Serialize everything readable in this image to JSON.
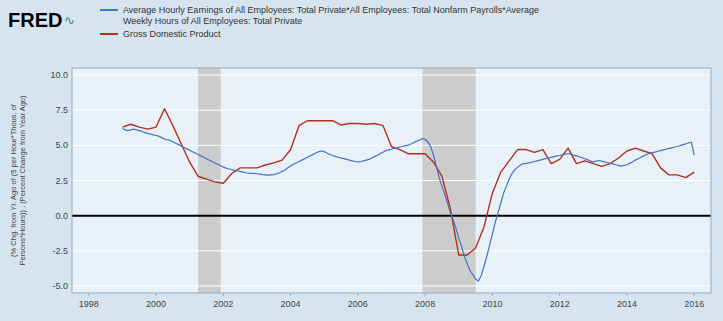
{
  "chart_data": {
    "type": "line",
    "annotations": [
      "FRED",
      "∿"
    ],
    "y_label": "(% Chg. from Yr. Ago of ($ per Hour*Thous. of\nPersons*Hours)) , (Percent Change from Year Ago)",
    "xlim": [
      1997.5,
      2016.5
    ],
    "xticks": [
      1998,
      2000,
      2002,
      2004,
      2006,
      2008,
      2010,
      2012,
      2014,
      2016
    ],
    "ylim": [
      -5.5,
      10.5
    ],
    "yticks": [
      {
        "value": -5.0,
        "label": "-5.0"
      },
      {
        "value": -2.5,
        "label": "-2.5"
      },
      {
        "value": 0.0,
        "label": "0.0"
      },
      {
        "value": 2.5,
        "label": "2.5"
      },
      {
        "value": 5.0,
        "label": "5.0"
      },
      {
        "value": 7.5,
        "label": "7.5"
      },
      {
        "value": 10.0,
        "label": "10.0"
      }
    ],
    "grid": true,
    "legend": "top-left",
    "recession_bands": [
      [
        2001.25,
        2001.92
      ],
      [
        2007.92,
        2009.5
      ]
    ],
    "reference_line": 0,
    "series": [
      {
        "name": "Average Hourly Earnings of All Employees: Total Private*All Employees: Total Nonfarm Payrolls*Average\nWeekly Hours of All Employees: Total Private",
        "color": "#4472c4",
        "x": [
          1999.0,
          1999.083,
          1999.167,
          1999.25,
          1999.333,
          1999.417,
          1999.5,
          1999.583,
          1999.667,
          1999.75,
          1999.833,
          1999.917,
          2000.0,
          2000.083,
          2000.167,
          2000.25,
          2000.333,
          2000.417,
          2000.5,
          2000.583,
          2000.667,
          2000.75,
          2000.833,
          2000.917,
          2001.0,
          2001.083,
          2001.167,
          2001.25,
          2001.333,
          2001.417,
          2001.5,
          2001.583,
          2001.667,
          2001.75,
          2001.833,
          2001.917,
          2002.0,
          2002.083,
          2002.167,
          2002.25,
          2002.333,
          2002.417,
          2002.5,
          2002.583,
          2002.667,
          2002.75,
          2002.833,
          2002.917,
          2003.0,
          2003.083,
          2003.167,
          2003.25,
          2003.333,
          2003.417,
          2003.5,
          2003.583,
          2003.667,
          2003.75,
          2003.833,
          2003.917,
          2004.0,
          2004.083,
          2004.167,
          2004.25,
          2004.333,
          2004.417,
          2004.5,
          2004.583,
          2004.667,
          2004.75,
          2004.833,
          2004.917,
          2005.0,
          2005.083,
          2005.167,
          2005.25,
          2005.333,
          2005.417,
          2005.5,
          2005.583,
          2005.667,
          2005.75,
          2005.833,
          2005.917,
          2006.0,
          2006.083,
          2006.167,
          2006.25,
          2006.333,
          2006.417,
          2006.5,
          2006.583,
          2006.667,
          2006.75,
          2006.833,
          2006.917,
          2007.0,
          2007.083,
          2007.167,
          2007.25,
          2007.333,
          2007.417,
          2007.5,
          2007.583,
          2007.667,
          2007.75,
          2007.833,
          2007.917,
          2008.0,
          2008.083,
          2008.167,
          2008.25,
          2008.333,
          2008.417,
          2008.5,
          2008.583,
          2008.667,
          2008.75,
          2008.833,
          2008.917,
          2009.0,
          2009.083,
          2009.167,
          2009.25,
          2009.333,
          2009.417,
          2009.5,
          2009.583,
          2009.667,
          2009.75,
          2009.833,
          2009.917,
          2010.0,
          2010.083,
          2010.167,
          2010.25,
          2010.333,
          2010.417,
          2010.5,
          2010.583,
          2010.667,
          2010.75,
          2010.833,
          2010.917,
          2011.0,
          2011.083,
          2011.167,
          2011.25,
          2011.333,
          2011.417,
          2011.5,
          2011.583,
          2011.667,
          2011.75,
          2011.833,
          2011.917,
          2012.0,
          2012.083,
          2012.167,
          2012.25,
          2012.333,
          2012.417,
          2012.5,
          2012.583,
          2012.667,
          2012.75,
          2012.833,
          2012.917,
          2013.0,
          2013.083,
          2013.167,
          2013.25,
          2013.333,
          2013.417,
          2013.5,
          2013.583,
          2013.667,
          2013.75,
          2013.833,
          2013.917,
          2014.0,
          2014.083,
          2014.167,
          2014.25,
          2014.333,
          2014.417,
          2014.5,
          2014.583,
          2014.667,
          2014.75,
          2014.833,
          2014.917,
          2015.0,
          2015.083,
          2015.167,
          2015.25,
          2015.333,
          2015.417,
          2015.5,
          2015.583,
          2015.667,
          2015.75,
          2015.833,
          2015.917,
          2016.0
        ],
        "values": [
          6.2,
          6.1,
          6.05,
          6.1,
          6.15,
          6.1,
          6.05,
          6.0,
          5.9,
          5.85,
          5.8,
          5.75,
          5.7,
          5.65,
          5.55,
          5.45,
          5.4,
          5.35,
          5.25,
          5.15,
          5.05,
          4.95,
          4.85,
          4.75,
          4.65,
          4.55,
          4.45,
          4.35,
          4.25,
          4.15,
          4.05,
          3.95,
          3.85,
          3.75,
          3.65,
          3.55,
          3.45,
          3.38,
          3.32,
          3.28,
          3.22,
          3.18,
          3.15,
          3.1,
          3.05,
          3.02,
          3.0,
          3.0,
          2.98,
          2.95,
          2.92,
          2.9,
          2.88,
          2.9,
          2.92,
          2.98,
          3.05,
          3.15,
          3.25,
          3.4,
          3.55,
          3.65,
          3.75,
          3.85,
          3.95,
          4.05,
          4.15,
          4.25,
          4.35,
          4.45,
          4.55,
          4.6,
          4.55,
          4.45,
          4.35,
          4.28,
          4.22,
          4.15,
          4.1,
          4.05,
          4.0,
          3.95,
          3.9,
          3.85,
          3.82,
          3.85,
          3.9,
          3.95,
          4.0,
          4.1,
          4.2,
          4.3,
          4.42,
          4.52,
          4.62,
          4.68,
          4.72,
          4.78,
          4.82,
          4.88,
          4.92,
          4.98,
          5.02,
          5.1,
          5.2,
          5.3,
          5.38,
          5.48,
          5.42,
          5.25,
          4.9,
          4.3,
          3.5,
          2.7,
          2.1,
          1.5,
          0.9,
          0.2,
          -0.3,
          -0.9,
          -1.6,
          -2.2,
          -2.9,
          -3.4,
          -3.9,
          -4.2,
          -4.5,
          -4.65,
          -4.25,
          -3.6,
          -2.9,
          -2.1,
          -1.3,
          -0.5,
          0.2,
          0.9,
          1.6,
          2.1,
          2.6,
          3.0,
          3.25,
          3.45,
          3.6,
          3.7,
          3.72,
          3.75,
          3.8,
          3.85,
          3.9,
          3.95,
          4.0,
          4.05,
          4.1,
          4.15,
          4.2,
          4.25,
          4.28,
          4.32,
          4.38,
          4.42,
          4.38,
          4.3,
          4.25,
          4.18,
          4.12,
          4.05,
          3.98,
          3.88,
          3.82,
          3.88,
          3.92,
          3.88,
          3.82,
          3.78,
          3.72,
          3.68,
          3.62,
          3.58,
          3.52,
          3.58,
          3.62,
          3.72,
          3.82,
          3.95,
          4.05,
          4.15,
          4.25,
          4.35,
          4.42,
          4.48,
          4.52,
          4.58,
          4.62,
          4.68,
          4.72,
          4.78,
          4.82,
          4.88,
          4.92,
          4.98,
          5.05,
          5.1,
          5.18,
          5.22,
          4.3
        ]
      },
      {
        "name": "Gross Domestic Product",
        "color": "#b03020",
        "x": [
          1999.0,
          1999.25,
          1999.5,
          1999.75,
          2000.0,
          2000.25,
          2000.5,
          2000.75,
          2001.0,
          2001.25,
          2001.5,
          2001.75,
          2002.0,
          2002.25,
          2002.5,
          2002.75,
          2003.0,
          2003.25,
          2003.5,
          2003.75,
          2004.0,
          2004.25,
          2004.5,
          2004.75,
          2005.0,
          2005.25,
          2005.5,
          2005.75,
          2006.0,
          2006.25,
          2006.5,
          2006.75,
          2007.0,
          2007.25,
          2007.5,
          2007.75,
          2008.0,
          2008.25,
          2008.5,
          2008.75,
          2009.0,
          2009.25,
          2009.5,
          2009.75,
          2010.0,
          2010.25,
          2010.5,
          2010.75,
          2011.0,
          2011.25,
          2011.5,
          2011.75,
          2012.0,
          2012.25,
          2012.5,
          2012.75,
          2013.0,
          2013.25,
          2013.5,
          2013.75,
          2014.0,
          2014.25,
          2014.5,
          2014.75,
          2015.0,
          2015.25,
          2015.5,
          2015.75,
          2016.0
        ],
        "values": [
          6.3,
          6.5,
          6.3,
          6.15,
          6.3,
          7.6,
          6.4,
          5.1,
          3.8,
          2.8,
          2.6,
          2.4,
          2.3,
          3.0,
          3.4,
          3.4,
          3.4,
          3.6,
          3.75,
          3.95,
          4.7,
          6.4,
          6.75,
          6.75,
          6.75,
          6.75,
          6.45,
          6.55,
          6.55,
          6.5,
          6.55,
          6.4,
          4.9,
          4.7,
          4.4,
          4.4,
          4.4,
          3.8,
          2.8,
          0.5,
          -2.8,
          -2.8,
          -2.3,
          -0.8,
          1.6,
          3.1,
          3.9,
          4.7,
          4.7,
          4.5,
          4.7,
          3.7,
          4.0,
          4.8,
          3.7,
          3.9,
          3.7,
          3.5,
          3.7,
          4.1,
          4.6,
          4.8,
          4.6,
          4.4,
          3.4,
          2.9,
          2.9,
          2.7,
          3.1
        ]
      }
    ]
  }
}
